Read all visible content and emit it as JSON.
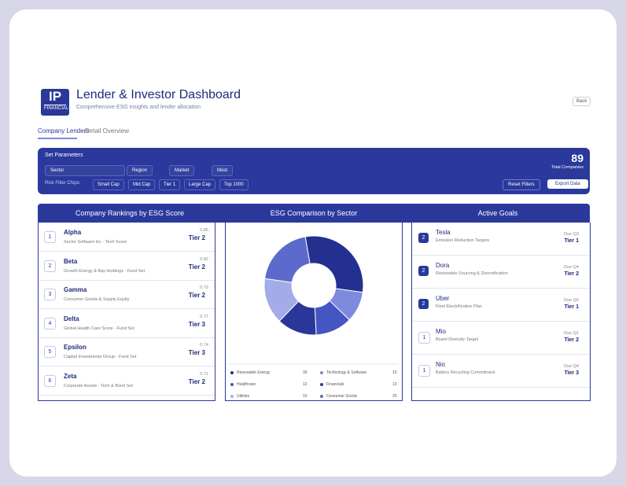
{
  "header": {
    "logo": "IP",
    "logo_sub": "FINANCIAL",
    "title": "Lender & Investor Dashboard",
    "subtitle": "Comprehensive ESG insights and lender allocation",
    "button": "Back"
  },
  "tabs": [
    "Company Lenders",
    "Detail Overview"
  ],
  "parameters": {
    "title": "Set Parameters",
    "filters": [
      "Sector",
      "Region",
      "Market",
      "Most"
    ],
    "chips_label": "Risk Filter Chips:",
    "chips": [
      "Small Cap",
      "Mid Cap",
      "Tier 1",
      "Large Cap",
      "Top 1000"
    ],
    "total": 89,
    "total_label": "Total Companies",
    "reset": "Reset Filters",
    "export": "Export Data"
  },
  "panels": [
    "Company Rankings by ESG Score",
    "ESG Comparison by Sector",
    "Active Goals"
  ],
  "rankings": [
    {
      "rank": 1,
      "name": "Alpha",
      "detail": "Sector Software Inc · Tech Score",
      "score": "0.85",
      "tier": "Tier 2"
    },
    {
      "rank": 2,
      "name": "Beta",
      "detail": "Growth Energy & Bay Holdings · Fund Set",
      "score": "0.82",
      "tier": "Tier 2"
    },
    {
      "rank": 3,
      "name": "Gamma",
      "detail": "Consumer Goods & Supply Equity",
      "score": "0.79",
      "tier": "Tier 2"
    },
    {
      "rank": 4,
      "name": "Delta",
      "detail": "Global Health Care Score · Fund Set",
      "score": "0.77",
      "tier": "Tier 3"
    },
    {
      "rank": 5,
      "name": "Epsilon",
      "detail": "Capital Investments Group · Fund Set",
      "score": "0.74",
      "tier": "Tier 3"
    },
    {
      "rank": 6,
      "name": "Zeta",
      "detail": "Corporate Assets · Tech & Bond Set",
      "score": "0.71",
      "tier": "Tier 2"
    }
  ],
  "chart_data": {
    "type": "pie",
    "categories": [
      "Renewable Energy",
      "Technology & Software",
      "Healthcare",
      "Financials",
      "Utilities",
      "Consumer Goods"
    ],
    "values": [
      30,
      10,
      12,
      13,
      15,
      20
    ],
    "colors": [
      "#23308f",
      "#7d8ade",
      "#4555c2",
      "#2a3798",
      "#a3ace8",
      "#5b6acb"
    ]
  },
  "goals": [
    {
      "icon": 2,
      "name": "Tesla",
      "detail": "Emission Reduction Targets",
      "meta": "Due Q3",
      "tier": "Tier 1"
    },
    {
      "icon": 2,
      "name": "Dora",
      "detail": "Renewable Sourcing & Diversification",
      "meta": "Due Q4",
      "tier": "Tier 2"
    },
    {
      "icon": 2,
      "name": "Uber",
      "detail": "Fleet Electrification Plan",
      "meta": "Due Q2",
      "tier": "Tier 1"
    },
    {
      "icon": 1,
      "name": "Mio",
      "detail": "Board Diversity Target",
      "meta": "Due Q1",
      "tier": "Tier 2"
    },
    {
      "icon": 1,
      "name": "Nio",
      "detail": "Battery Recycling Commitment",
      "meta": "Due Q4",
      "tier": "Tier 3"
    }
  ]
}
